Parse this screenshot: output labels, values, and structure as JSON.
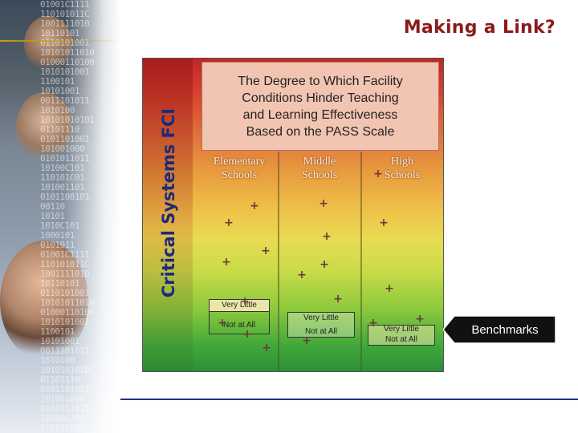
{
  "slide": {
    "title": "Making a Link?",
    "callout_label": "Benchmarks"
  },
  "background": {
    "binary_lines": [
      "01001C1111",
      "110101011C",
      "1001111010",
      "10110101",
      "0110101001",
      "10101011010",
      "01000110100",
      "1010101001",
      "1100101",
      "10101001",
      "0011101011",
      "1010100",
      "10101010101",
      "01101110",
      "0101101001",
      "101001000",
      "0101011011",
      "10100C101",
      "110101C01",
      "101001101",
      "0101100101",
      "00110",
      "10101",
      "1010C101",
      "1000101",
      "0101011"
    ]
  },
  "chart": {
    "y_axis_label": "Critical Systems FCI",
    "title_lines": [
      "The Degree to Which Facility",
      "Conditions Hinder Teaching",
      "and Learning Effectiveness",
      "Based on the PASS Scale"
    ],
    "columns": [
      {
        "heading_line1": "Elementary",
        "heading_line2": "Schools"
      },
      {
        "heading_line1": "Middle",
        "heading_line2": "Schools"
      },
      {
        "heading_line1": "High",
        "heading_line2": "Schools"
      }
    ],
    "benchmarks": {
      "very_little": "Very Little",
      "not_at_all": "Not at All"
    },
    "colors": {
      "top": "#c0262a",
      "middle": "#eec048",
      "bottom": "#2c8f36",
      "title_box": "#f2c4b2",
      "axis_label": "#1d2a7a",
      "slide_title": "#8b1a1a"
    }
  }
}
